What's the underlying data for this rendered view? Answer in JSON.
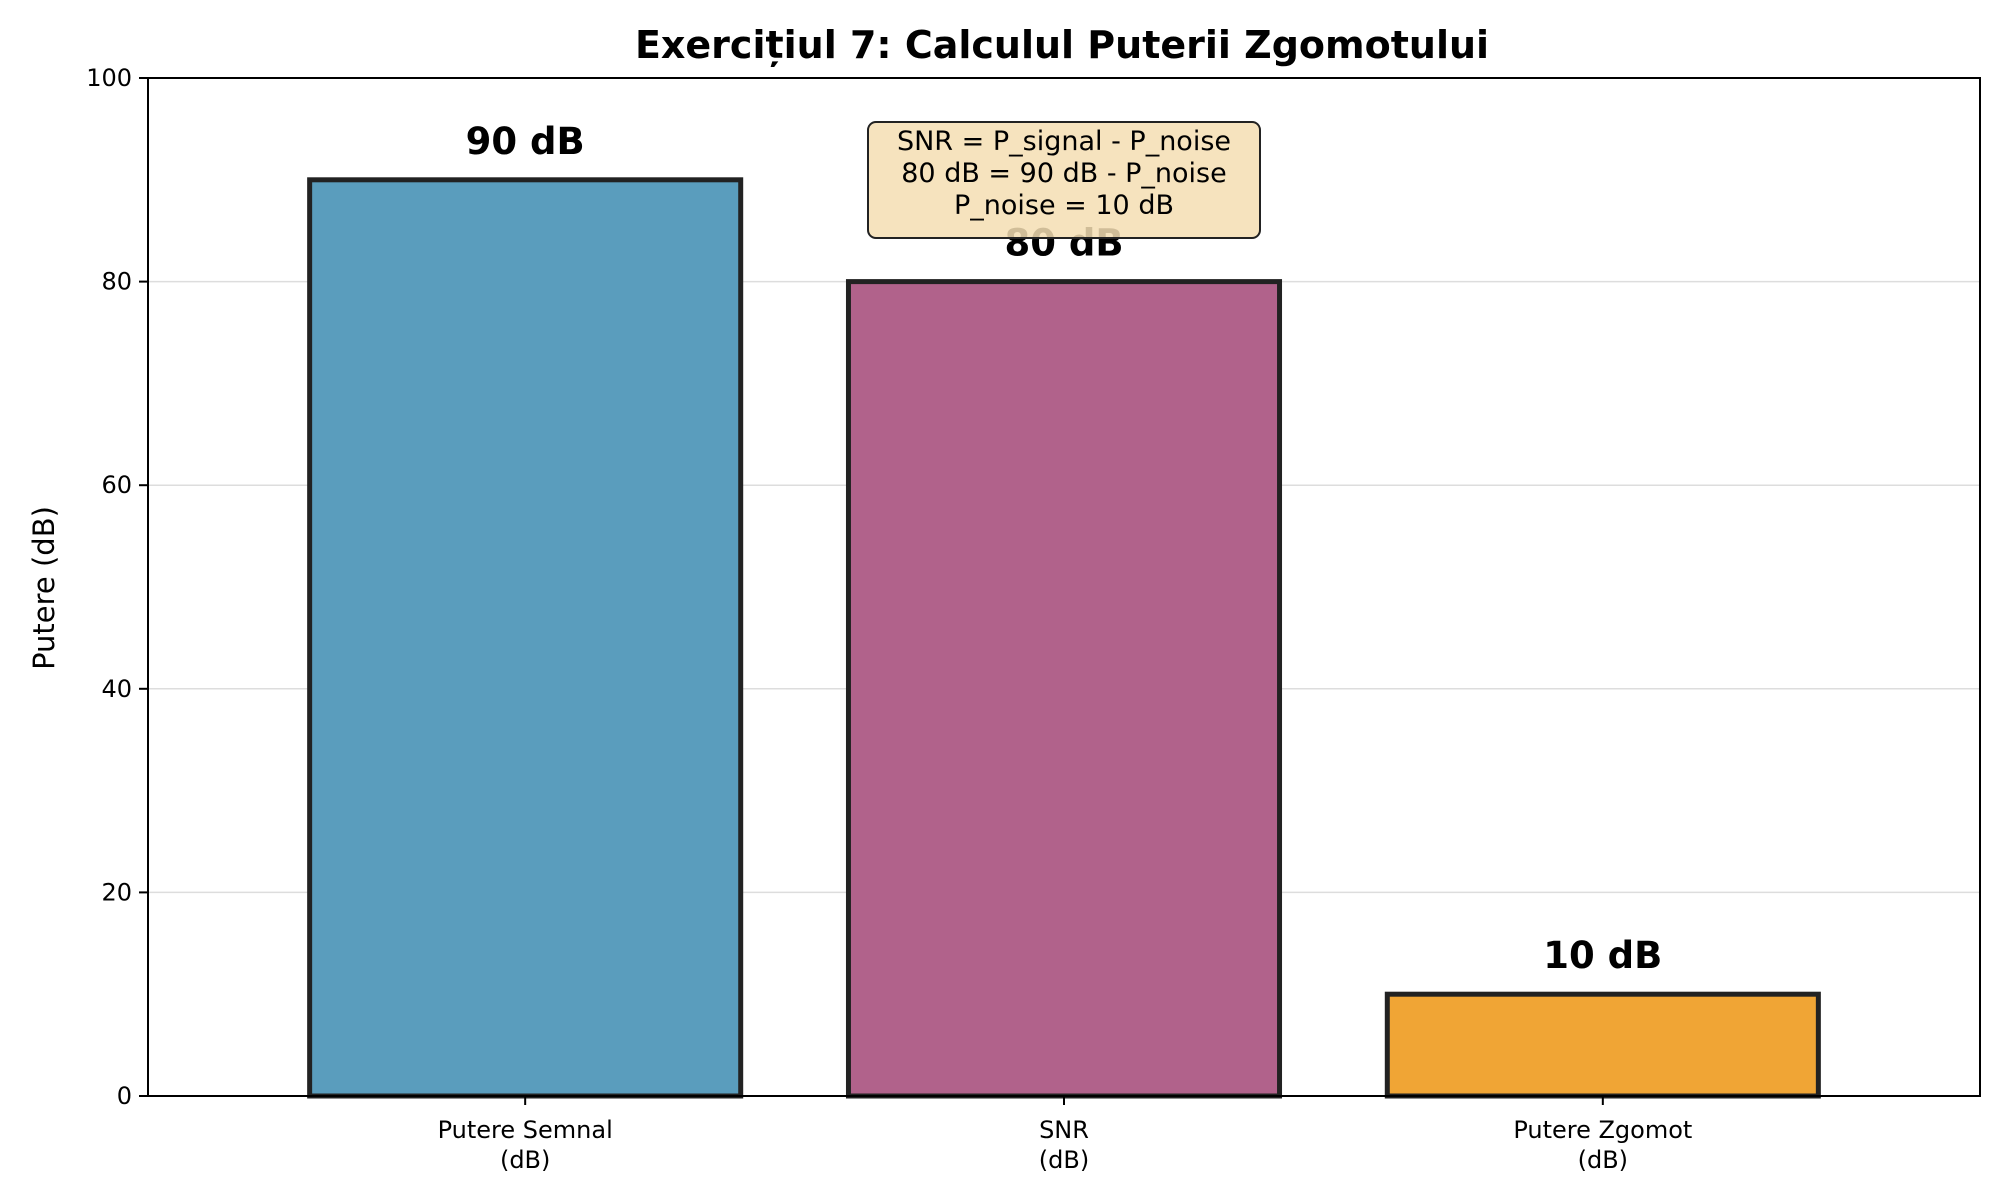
{
  "chart_data": {
    "type": "bar",
    "title": "Exercițiul 7: Calculul Puterii Zgomotului",
    "xlabel": "",
    "ylabel": "Putere (dB)",
    "ylim": [
      0,
      100
    ],
    "yticks": [
      0,
      20,
      40,
      60,
      80,
      100
    ],
    "grid": "y",
    "categories": [
      [
        "Putere Semnal",
        "(dB)"
      ],
      [
        "SNR",
        "(dB)"
      ],
      [
        "Putere Zgomot",
        "(dB)"
      ]
    ],
    "values": [
      90,
      80,
      10
    ],
    "value_labels": [
      "90 dB",
      "80 dB",
      "10 dB"
    ],
    "colors": [
      "#5a9dbd",
      "#b1628b",
      "#f0a535"
    ],
    "edge_color": "#222222",
    "annotation": {
      "lines": [
        "SNR = P_signal - P_noise",
        "80 dB = 90 dB - P_noise",
        "P_noise = 10 dB"
      ],
      "background": "#f5deb3",
      "anchor_category": 1
    }
  }
}
